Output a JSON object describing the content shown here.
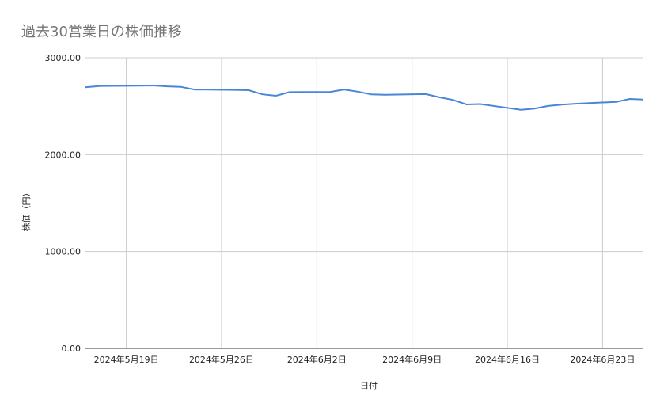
{
  "chart_data": {
    "type": "line",
    "title": "過去30営業日の株価推移",
    "xlabel": "日付",
    "ylabel": "株価（円）",
    "ylim": [
      0,
      3000
    ],
    "yticks": [
      "0.00",
      "1000.00",
      "2000.00",
      "3000.00"
    ],
    "xlim": [
      "2024-05-16",
      "2024-06-26"
    ],
    "xticks": [
      {
        "date": "2024-05-19",
        "label": "2024年5月19日"
      },
      {
        "date": "2024-05-26",
        "label": "2024年5月26日"
      },
      {
        "date": "2024-06-02",
        "label": "2024年6月2日"
      },
      {
        "date": "2024-06-09",
        "label": "2024年6月9日"
      },
      {
        "date": "2024-06-16",
        "label": "2024年6月16日"
      },
      {
        "date": "2024-06-23",
        "label": "2024年6月23日"
      }
    ],
    "grid": true,
    "line_color": "#4a86d8",
    "x": [
      "2024-05-16",
      "2024-05-17",
      "2024-05-20",
      "2024-05-21",
      "2024-05-22",
      "2024-05-23",
      "2024-05-24",
      "2024-05-27",
      "2024-05-28",
      "2024-05-29",
      "2024-05-30",
      "2024-05-31",
      "2024-06-03",
      "2024-06-04",
      "2024-06-05",
      "2024-06-06",
      "2024-06-07",
      "2024-06-10",
      "2024-06-11",
      "2024-06-12",
      "2024-06-13",
      "2024-06-14",
      "2024-06-17",
      "2024-06-18",
      "2024-06-19",
      "2024-06-20",
      "2024-06-21",
      "2024-06-24",
      "2024-06-25",
      "2024-06-26"
    ],
    "values": [
      2695,
      2708,
      2712,
      2714,
      2705,
      2700,
      2672,
      2668,
      2665,
      2622,
      2608,
      2645,
      2648,
      2672,
      2650,
      2622,
      2618,
      2625,
      2592,
      2565,
      2518,
      2522,
      2462,
      2475,
      2502,
      2515,
      2525,
      2545,
      2575,
      2568
    ]
  }
}
